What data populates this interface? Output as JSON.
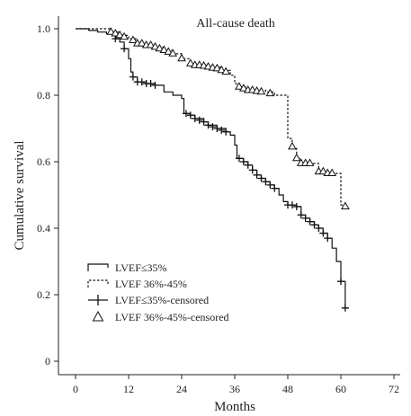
{
  "chart_data": {
    "type": "line",
    "title": "All-cause death",
    "xlabel": "Months",
    "ylabel": "Cumulative survival",
    "xlim": [
      0,
      72
    ],
    "ylim": [
      0,
      1.0
    ],
    "x_ticks": [
      "0",
      "12",
      "24",
      "36",
      "48",
      "60",
      "72"
    ],
    "y_ticks": [
      "0",
      "0.2",
      "0.4",
      "0.6",
      "0.8",
      "1.0"
    ],
    "grid": false,
    "legend_position": "bottom-left",
    "legend": [
      "LVEF≤35%",
      "LVEF 36%-45%",
      "LVEF≤35%-censored",
      "LVEF 36%-45%-censored"
    ],
    "series": [
      {
        "name": "LVEF≤35%",
        "style": "solid-step",
        "points": [
          [
            0,
            1.0
          ],
          [
            2,
            1.0
          ],
          [
            3,
            0.995
          ],
          [
            5,
            0.99
          ],
          [
            7,
            0.985
          ],
          [
            9,
            0.97
          ],
          [
            10,
            0.96
          ],
          [
            11,
            0.94
          ],
          [
            12,
            0.91
          ],
          [
            12.5,
            0.87
          ],
          [
            13,
            0.855
          ],
          [
            14,
            0.84
          ],
          [
            16,
            0.835
          ],
          [
            18,
            0.83
          ],
          [
            20,
            0.81
          ],
          [
            22,
            0.8
          ],
          [
            24,
            0.79
          ],
          [
            24.5,
            0.745
          ],
          [
            26,
            0.74
          ],
          [
            27,
            0.73
          ],
          [
            29,
            0.72
          ],
          [
            30,
            0.71
          ],
          [
            32,
            0.7
          ],
          [
            34,
            0.69
          ],
          [
            35,
            0.68
          ],
          [
            36,
            0.65
          ],
          [
            36.5,
            0.61
          ],
          [
            38,
            0.6
          ],
          [
            39,
            0.59
          ],
          [
            40,
            0.575
          ],
          [
            41,
            0.56
          ],
          [
            42,
            0.55
          ],
          [
            43,
            0.54
          ],
          [
            44,
            0.53
          ],
          [
            45,
            0.52
          ],
          [
            46,
            0.5
          ],
          [
            47,
            0.48
          ],
          [
            48,
            0.47
          ],
          [
            50,
            0.465
          ],
          [
            51,
            0.44
          ],
          [
            52,
            0.43
          ],
          [
            53,
            0.42
          ],
          [
            54,
            0.41
          ],
          [
            55,
            0.4
          ],
          [
            56,
            0.385
          ],
          [
            57,
            0.37
          ],
          [
            58,
            0.34
          ],
          [
            59,
            0.3
          ],
          [
            60,
            0.24
          ],
          [
            61,
            0.16
          ]
        ],
        "censored": [
          [
            9,
            0.97
          ],
          [
            11,
            0.94
          ],
          [
            13,
            0.855
          ],
          [
            14,
            0.84
          ],
          [
            15,
            0.84
          ],
          [
            16,
            0.835
          ],
          [
            17,
            0.835
          ],
          [
            18,
            0.83
          ],
          [
            25,
            0.745
          ],
          [
            26,
            0.74
          ],
          [
            27,
            0.73
          ],
          [
            28,
            0.725
          ],
          [
            29,
            0.72
          ],
          [
            30,
            0.71
          ],
          [
            31,
            0.705
          ],
          [
            32,
            0.7
          ],
          [
            33,
            0.695
          ],
          [
            34,
            0.69
          ],
          [
            37,
            0.61
          ],
          [
            38,
            0.6
          ],
          [
            39,
            0.59
          ],
          [
            40,
            0.575
          ],
          [
            41,
            0.56
          ],
          [
            42,
            0.55
          ],
          [
            43,
            0.54
          ],
          [
            44,
            0.53
          ],
          [
            45,
            0.52
          ],
          [
            48,
            0.47
          ],
          [
            49,
            0.47
          ],
          [
            50,
            0.465
          ],
          [
            51,
            0.44
          ],
          [
            52,
            0.43
          ],
          [
            53,
            0.42
          ],
          [
            54,
            0.41
          ],
          [
            55,
            0.4
          ],
          [
            56,
            0.385
          ],
          [
            57,
            0.37
          ],
          [
            60,
            0.24
          ],
          [
            61,
            0.16
          ]
        ]
      },
      {
        "name": "LVEF 36%-45%",
        "style": "dashed-step",
        "points": [
          [
            0,
            1.0
          ],
          [
            6,
            1.0
          ],
          [
            8,
            0.99
          ],
          [
            10,
            0.98
          ],
          [
            12,
            0.97
          ],
          [
            14,
            0.955
          ],
          [
            16,
            0.95
          ],
          [
            18,
            0.945
          ],
          [
            20,
            0.935
          ],
          [
            22,
            0.925
          ],
          [
            24,
            0.91
          ],
          [
            26,
            0.89
          ],
          [
            30,
            0.885
          ],
          [
            33,
            0.875
          ],
          [
            35,
            0.86
          ],
          [
            36,
            0.835
          ],
          [
            37,
            0.825
          ],
          [
            39,
            0.815
          ],
          [
            43,
            0.81
          ],
          [
            45,
            0.8
          ],
          [
            48,
            0.67
          ],
          [
            49,
            0.64
          ],
          [
            50,
            0.61
          ],
          [
            51,
            0.595
          ],
          [
            53,
            0.595
          ],
          [
            55,
            0.57
          ],
          [
            57,
            0.565
          ],
          [
            60,
            0.47
          ],
          [
            61,
            0.465
          ]
        ],
        "censored": [
          [
            8,
            0.99
          ],
          [
            9,
            0.985
          ],
          [
            10,
            0.98
          ],
          [
            11,
            0.975
          ],
          [
            13,
            0.965
          ],
          [
            14,
            0.955
          ],
          [
            15,
            0.955
          ],
          [
            16,
            0.95
          ],
          [
            17,
            0.95
          ],
          [
            18,
            0.945
          ],
          [
            19,
            0.94
          ],
          [
            20,
            0.935
          ],
          [
            21,
            0.93
          ],
          [
            22,
            0.925
          ],
          [
            24,
            0.91
          ],
          [
            26,
            0.895
          ],
          [
            27,
            0.89
          ],
          [
            28,
            0.89
          ],
          [
            29,
            0.888
          ],
          [
            30,
            0.885
          ],
          [
            31,
            0.882
          ],
          [
            32,
            0.88
          ],
          [
            33,
            0.875
          ],
          [
            34,
            0.87
          ],
          [
            37,
            0.825
          ],
          [
            38,
            0.82
          ],
          [
            39,
            0.815
          ],
          [
            40,
            0.815
          ],
          [
            41,
            0.812
          ],
          [
            42,
            0.81
          ],
          [
            44,
            0.805
          ],
          [
            49,
            0.645
          ],
          [
            50,
            0.61
          ],
          [
            51,
            0.595
          ],
          [
            52,
            0.595
          ],
          [
            53,
            0.595
          ],
          [
            55,
            0.57
          ],
          [
            56,
            0.57
          ],
          [
            57,
            0.565
          ],
          [
            58,
            0.565
          ],
          [
            61,
            0.465
          ]
        ]
      }
    ]
  }
}
